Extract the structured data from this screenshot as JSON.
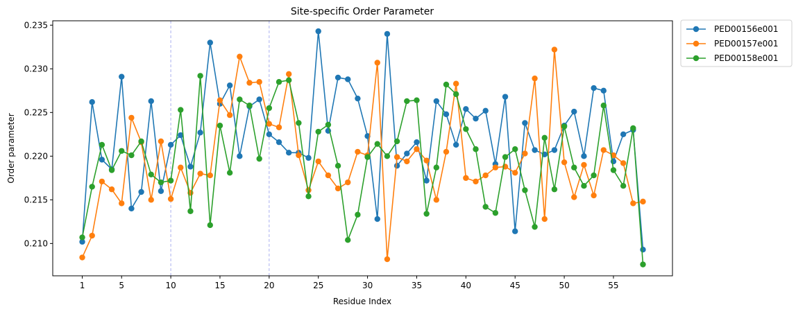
{
  "chart_data": {
    "type": "line",
    "title": "Site-specific Order Parameter",
    "xlabel": "Residue Index",
    "ylabel": "Order parameter",
    "xlim": [
      -2.0,
      61.0
    ],
    "ylim": [
      0.2063,
      0.2355
    ],
    "xticks": [
      1,
      5,
      10,
      15,
      20,
      25,
      30,
      35,
      40,
      45,
      50,
      55
    ],
    "xtick_labels": [
      "1",
      "5",
      "10",
      "15",
      "20",
      "25",
      "30",
      "35",
      "40",
      "45",
      "50",
      "55"
    ],
    "yticks": [
      0.21,
      0.215,
      0.22,
      0.225,
      0.23,
      0.235
    ],
    "ytick_labels": [
      "0.210",
      "0.215",
      "0.220",
      "0.225",
      "0.230",
      "0.235"
    ],
    "vlines": [
      10,
      20
    ],
    "vline_color": "#aab0f0",
    "grid": false,
    "legend_position": "outside-top-right",
    "x": [
      1,
      2,
      3,
      4,
      5,
      6,
      7,
      8,
      9,
      10,
      11,
      12,
      13,
      14,
      15,
      16,
      17,
      18,
      19,
      20,
      21,
      22,
      23,
      24,
      25,
      26,
      27,
      28,
      29,
      30,
      31,
      32,
      33,
      34,
      35,
      36,
      37,
      38,
      39,
      40,
      41,
      42,
      43,
      44,
      45,
      46,
      47,
      48,
      49,
      50,
      51,
      52,
      53,
      54,
      55,
      56,
      57,
      58
    ],
    "series": [
      {
        "name": "PED00156e001",
        "color": "#1f77b4",
        "values": [
          0.2102,
          0.2262,
          0.2196,
          0.2185,
          0.2291,
          0.214,
          0.2159,
          0.2263,
          0.216,
          0.2213,
          0.2224,
          0.2188,
          0.2227,
          0.233,
          0.226,
          0.2281,
          0.22,
          0.2257,
          0.2265,
          0.2225,
          0.2216,
          0.2204,
          0.2204,
          0.2198,
          0.2343,
          0.2229,
          0.229,
          0.2288,
          0.2266,
          0.2223,
          0.2128,
          0.234,
          0.2189,
          0.2203,
          0.2216,
          0.2172,
          0.2263,
          0.2248,
          0.2213,
          0.2254,
          0.2243,
          0.2252,
          0.2191,
          0.2268,
          0.2114,
          0.2238,
          0.2207,
          0.2202,
          0.2207,
          0.2235,
          0.2251,
          0.22,
          0.2278,
          0.2275,
          0.2194,
          0.2225,
          0.223,
          0.2093
        ]
      },
      {
        "name": "PED00157e001",
        "color": "#ff7f0e",
        "values": [
          0.2084,
          0.2109,
          0.2171,
          0.2162,
          0.2146,
          0.2244,
          0.2216,
          0.215,
          0.2217,
          0.2151,
          0.2187,
          0.2158,
          0.218,
          0.2178,
          0.2264,
          0.2247,
          0.2314,
          0.2284,
          0.2285,
          0.2237,
          0.2233,
          0.2294,
          0.2201,
          0.2161,
          0.2194,
          0.2178,
          0.2163,
          0.217,
          0.2205,
          0.2201,
          0.2307,
          0.2082,
          0.2199,
          0.2194,
          0.2208,
          0.2195,
          0.215,
          0.2205,
          0.2283,
          0.2175,
          0.2171,
          0.2178,
          0.2187,
          0.2188,
          0.2181,
          0.2203,
          0.2289,
          0.2128,
          0.2322,
          0.2193,
          0.2153,
          0.219,
          0.2155,
          0.2207,
          0.2201,
          0.2192,
          0.2146,
          0.2148
        ]
      },
      {
        "name": "PED00158e001",
        "color": "#2ca02c",
        "values": [
          0.2107,
          0.2165,
          0.2213,
          0.2184,
          0.2206,
          0.2201,
          0.2217,
          0.2179,
          0.217,
          0.2172,
          0.2253,
          0.2137,
          0.2292,
          0.2121,
          0.2235,
          0.2181,
          0.2265,
          0.2258,
          0.2197,
          0.2255,
          0.2285,
          0.2287,
          0.2238,
          0.2154,
          0.2228,
          0.2236,
          0.2189,
          0.2104,
          0.2133,
          0.2199,
          0.2214,
          0.22,
          0.2217,
          0.2263,
          0.2264,
          0.2134,
          0.2187,
          0.2282,
          0.2271,
          0.2231,
          0.2208,
          0.2142,
          0.2135,
          0.2199,
          0.2208,
          0.2161,
          0.2119,
          0.2221,
          0.2162,
          0.2234,
          0.2187,
          0.2166,
          0.2178,
          0.2258,
          0.2184,
          0.2166,
          0.2232,
          0.2076
        ]
      }
    ]
  }
}
